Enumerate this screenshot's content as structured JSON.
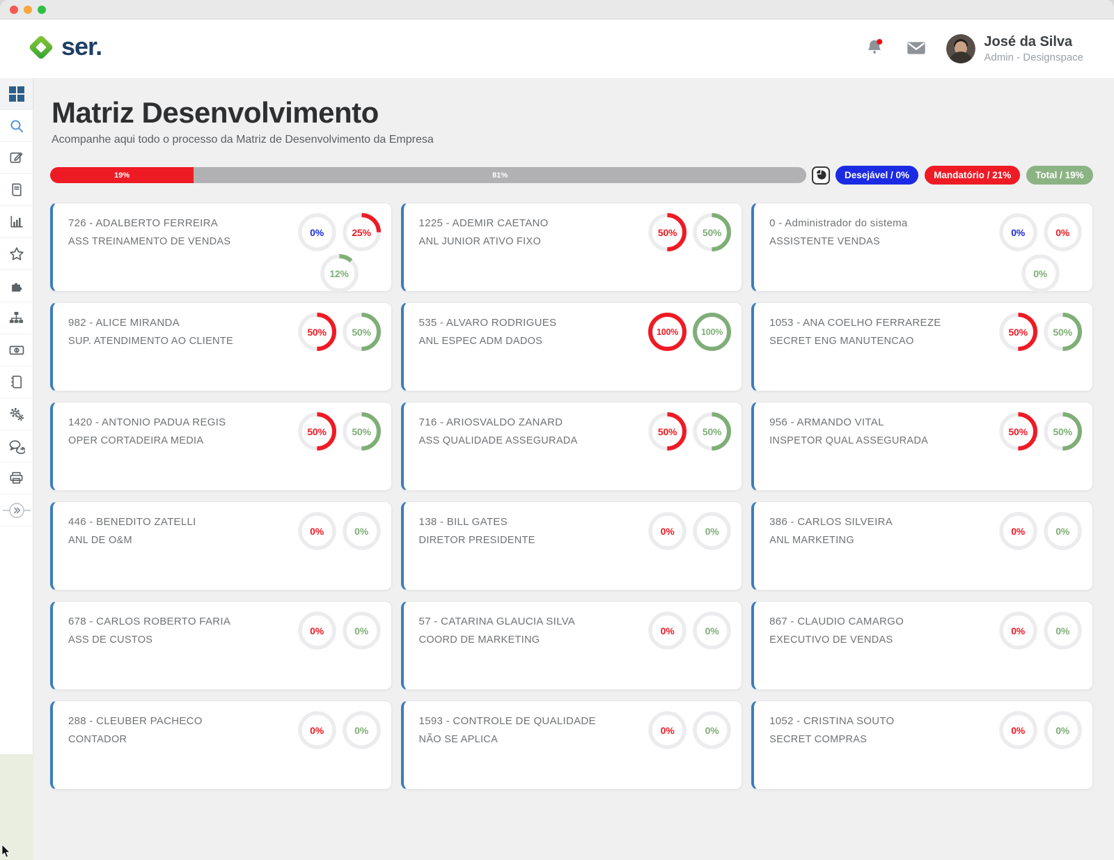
{
  "header": {
    "logo_text": "ser.",
    "user": {
      "name": "José da Silva",
      "role": "Admin - Designspace"
    }
  },
  "sidebar": {
    "items": [
      "dashboard",
      "search",
      "edit",
      "journal",
      "bar-chart",
      "star",
      "puzzle",
      "org-chart",
      "money",
      "notebook",
      "settings",
      "chat",
      "print",
      "collapse"
    ]
  },
  "page": {
    "title": "Matriz Desenvolvimento",
    "subtitle": "Acompanhe aqui todo o processo da Matriz de Desenvolvimento da Empresa"
  },
  "progress": {
    "segments": [
      {
        "label": "19%",
        "value": 19,
        "color": "#ee1b24"
      },
      {
        "label": "81%",
        "value": 81,
        "color": "#b1b1b3"
      }
    ]
  },
  "filters": [
    {
      "name": "desejavel",
      "label": "Desejável / 0%",
      "color": "#1b2be3"
    },
    {
      "name": "mandatorio",
      "label": "Mandatório / 21%",
      "color": "#ee1b24"
    },
    {
      "name": "total",
      "label": "Total / 19%",
      "color": "#8cb384"
    }
  ],
  "colors": {
    "donut": {
      "blue": "#1b2fd9",
      "red": "#ee1b24",
      "green": "#7fae77"
    },
    "card_accent": "#3c7cba"
  },
  "cards": [
    {
      "title": "726 - ADALBERTO FERREIRA",
      "role": "ASS TREINAMENTO DE VENDAS",
      "donuts": [
        {
          "value": 0,
          "color": "blue"
        },
        {
          "value": 25,
          "color": "red"
        },
        {
          "value": 12,
          "color": "green"
        }
      ]
    },
    {
      "title": "1225 - ADEMIR CAETANO",
      "role": "ANL JUNIOR ATIVO FIXO",
      "donuts": [
        {
          "value": 50,
          "color": "red"
        },
        {
          "value": 50,
          "color": "green"
        }
      ]
    },
    {
      "title": "0 - Administrador do sistema",
      "role": "ASSISTENTE VENDAS",
      "donuts": [
        {
          "value": 0,
          "color": "blue"
        },
        {
          "value": 0,
          "color": "red"
        },
        {
          "value": 0,
          "color": "green"
        }
      ]
    },
    {
      "title": "982 - ALICE MIRANDA",
      "role": "SUP. ATENDIMENTO AO CLIENTE",
      "donuts": [
        {
          "value": 50,
          "color": "red"
        },
        {
          "value": 50,
          "color": "green"
        }
      ]
    },
    {
      "title": "535 - ALVARO RODRIGUES",
      "role": "ANL ESPEC ADM DADOS",
      "donuts": [
        {
          "value": 100,
          "color": "red"
        },
        {
          "value": 100,
          "color": "green"
        }
      ]
    },
    {
      "title": "1053 - ANA COELHO FERRAREZE",
      "role": "SECRET ENG MANUTENCAO",
      "donuts": [
        {
          "value": 50,
          "color": "red"
        },
        {
          "value": 50,
          "color": "green"
        }
      ]
    },
    {
      "title": "1420 - ANTONIO PADUA REGIS",
      "role": "OPER CORTADEIRA MEDIA",
      "donuts": [
        {
          "value": 50,
          "color": "red"
        },
        {
          "value": 50,
          "color": "green"
        }
      ]
    },
    {
      "title": "716 - ARIOSVALDO ZANARD",
      "role": "ASS QUALIDADE ASSEGURADA",
      "donuts": [
        {
          "value": 50,
          "color": "red"
        },
        {
          "value": 50,
          "color": "green"
        }
      ]
    },
    {
      "title": "956 - ARMANDO VITAL",
      "role": "INSPETOR QUAL ASSEGURADA",
      "donuts": [
        {
          "value": 50,
          "color": "red"
        },
        {
          "value": 50,
          "color": "green"
        }
      ]
    },
    {
      "title": "446 - BENEDITO ZATELLI",
      "role": "ANL DE O&M",
      "donuts": [
        {
          "value": 0,
          "color": "red"
        },
        {
          "value": 0,
          "color": "green"
        }
      ]
    },
    {
      "title": "138 - BILL GATES",
      "role": "DIRETOR PRESIDENTE",
      "donuts": [
        {
          "value": 0,
          "color": "red"
        },
        {
          "value": 0,
          "color": "green"
        }
      ]
    },
    {
      "title": "386 - CARLOS SILVEIRA",
      "role": "ANL MARKETING",
      "donuts": [
        {
          "value": 0,
          "color": "red"
        },
        {
          "value": 0,
          "color": "green"
        }
      ]
    },
    {
      "title": "678 - CARLOS ROBERTO FARIA",
      "role": "ASS DE CUSTOS",
      "donuts": [
        {
          "value": 0,
          "color": "red"
        },
        {
          "value": 0,
          "color": "green"
        }
      ]
    },
    {
      "title": "57 - CATARINA GLAUCIA SILVA",
      "role": "COORD DE MARKETING",
      "donuts": [
        {
          "value": 0,
          "color": "red"
        },
        {
          "value": 0,
          "color": "green"
        }
      ]
    },
    {
      "title": "867 - CLAUDIO CAMARGO",
      "role": "EXECUTIVO DE VENDAS",
      "donuts": [
        {
          "value": 0,
          "color": "red"
        },
        {
          "value": 0,
          "color": "green"
        }
      ]
    },
    {
      "title": "288 - CLEUBER PACHECO",
      "role": "CONTADOR",
      "donuts": [
        {
          "value": 0,
          "color": "red"
        },
        {
          "value": 0,
          "color": "green"
        }
      ]
    },
    {
      "title": "1593 - CONTROLE DE QUALIDADE",
      "role": "NÃO SE APLICA",
      "donuts": [
        {
          "value": 0,
          "color": "red"
        },
        {
          "value": 0,
          "color": "green"
        }
      ]
    },
    {
      "title": "1052 - CRISTINA SOUTO",
      "role": "SECRET COMPRAS",
      "donuts": [
        {
          "value": 0,
          "color": "red"
        },
        {
          "value": 0,
          "color": "green"
        }
      ]
    }
  ]
}
